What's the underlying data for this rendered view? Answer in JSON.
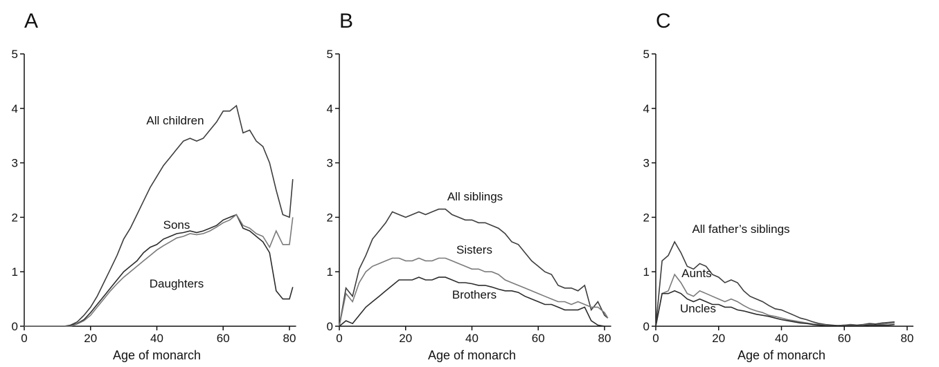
{
  "chart_data": [
    {
      "type": "line",
      "title": "A",
      "xlabel": "Age of monarch",
      "xlim": [
        0,
        82
      ],
      "ylim": [
        0,
        5
      ],
      "xticks": [
        0,
        20,
        40,
        60,
        80
      ],
      "yticks": [
        0,
        1,
        2,
        3,
        4,
        5
      ],
      "x": [
        0,
        2,
        4,
        6,
        8,
        10,
        12,
        14,
        16,
        18,
        20,
        22,
        24,
        26,
        28,
        30,
        32,
        34,
        36,
        38,
        40,
        42,
        44,
        46,
        48,
        50,
        52,
        54,
        56,
        58,
        60,
        62,
        64,
        66,
        68,
        70,
        72,
        74,
        76,
        78,
        80,
        81
      ],
      "series": [
        {
          "name": "All children",
          "color": "#3d3d3d",
          "values": [
            0,
            0,
            0,
            0,
            0,
            0,
            0,
            0.02,
            0.08,
            0.2,
            0.35,
            0.55,
            0.8,
            1.05,
            1.3,
            1.6,
            1.8,
            2.05,
            2.3,
            2.55,
            2.75,
            2.95,
            3.1,
            3.25,
            3.4,
            3.45,
            3.4,
            3.45,
            3.6,
            3.75,
            3.95,
            3.95,
            4.05,
            3.55,
            3.6,
            3.4,
            3.3,
            3.0,
            2.5,
            2.05,
            2.0,
            2.7
          ]
        },
        {
          "name": "Sons",
          "color": "#2b2b2b",
          "values": [
            0,
            0,
            0,
            0,
            0,
            0,
            0,
            0.01,
            0.05,
            0.12,
            0.25,
            0.4,
            0.55,
            0.7,
            0.85,
            1.0,
            1.1,
            1.2,
            1.35,
            1.45,
            1.5,
            1.6,
            1.65,
            1.7,
            1.72,
            1.75,
            1.72,
            1.75,
            1.8,
            1.85,
            1.95,
            2.0,
            2.05,
            1.8,
            1.75,
            1.65,
            1.55,
            1.35,
            0.65,
            0.5,
            0.5,
            0.72
          ]
        },
        {
          "name": "Daughters",
          "color": "#7a7a7a",
          "values": [
            0,
            0,
            0,
            0,
            0,
            0,
            0,
            0,
            0.04,
            0.1,
            0.2,
            0.35,
            0.5,
            0.65,
            0.78,
            0.9,
            1.0,
            1.1,
            1.2,
            1.3,
            1.4,
            1.48,
            1.55,
            1.62,
            1.65,
            1.7,
            1.68,
            1.7,
            1.75,
            1.82,
            1.9,
            1.95,
            2.05,
            1.85,
            1.8,
            1.7,
            1.65,
            1.45,
            1.75,
            1.5,
            1.5,
            2.0
          ]
        }
      ]
    },
    {
      "type": "line",
      "title": "B",
      "xlabel": "Age of monarch",
      "xlim": [
        0,
        82
      ],
      "ylim": [
        0,
        5
      ],
      "xticks": [
        0,
        20,
        40,
        60,
        80
      ],
      "yticks": [
        0,
        1,
        2,
        3,
        4,
        5
      ],
      "x": [
        0,
        2,
        4,
        6,
        8,
        10,
        12,
        14,
        16,
        18,
        20,
        22,
        24,
        26,
        28,
        30,
        32,
        34,
        36,
        38,
        40,
        42,
        44,
        46,
        48,
        50,
        52,
        54,
        56,
        58,
        60,
        62,
        64,
        66,
        68,
        70,
        72,
        74,
        76,
        78,
        80,
        81
      ],
      "series": [
        {
          "name": "All siblings",
          "color": "#3d3d3d",
          "values": [
            0,
            0.7,
            0.55,
            1.05,
            1.3,
            1.6,
            1.75,
            1.9,
            2.1,
            2.05,
            2.0,
            2.05,
            2.1,
            2.05,
            2.1,
            2.15,
            2.15,
            2.05,
            2.0,
            1.95,
            1.95,
            1.9,
            1.9,
            1.85,
            1.8,
            1.7,
            1.55,
            1.5,
            1.35,
            1.2,
            1.1,
            1.0,
            0.95,
            0.75,
            0.7,
            0.7,
            0.65,
            0.75,
            0.3,
            0.45,
            0.2,
            0.15
          ]
        },
        {
          "name": "Sisters",
          "color": "#7a7a7a",
          "values": [
            0,
            0.6,
            0.45,
            0.8,
            1.0,
            1.1,
            1.15,
            1.2,
            1.25,
            1.25,
            1.2,
            1.2,
            1.25,
            1.2,
            1.2,
            1.25,
            1.25,
            1.2,
            1.15,
            1.1,
            1.05,
            1.05,
            1.0,
            1.0,
            0.95,
            0.85,
            0.8,
            0.75,
            0.7,
            0.65,
            0.6,
            0.55,
            0.5,
            0.45,
            0.45,
            0.4,
            0.45,
            0.4,
            0.35,
            0.35,
            0.25,
            0.15
          ]
        },
        {
          "name": "Brothers",
          "color": "#2b2b2b",
          "values": [
            0,
            0.1,
            0.05,
            0.2,
            0.35,
            0.45,
            0.55,
            0.65,
            0.75,
            0.85,
            0.85,
            0.85,
            0.9,
            0.85,
            0.85,
            0.9,
            0.9,
            0.85,
            0.8,
            0.8,
            0.78,
            0.75,
            0.75,
            0.72,
            0.68,
            0.65,
            0.65,
            0.62,
            0.55,
            0.5,
            0.45,
            0.4,
            0.4,
            0.35,
            0.3,
            0.3,
            0.3,
            0.35,
            0.1,
            0.02,
            0,
            null
          ]
        }
      ]
    },
    {
      "type": "line",
      "title": "C",
      "xlabel": "Age of monarch",
      "xlim": [
        0,
        82
      ],
      "ylim": [
        0,
        5
      ],
      "xticks": [
        0,
        20,
        40,
        60,
        80
      ],
      "yticks": [
        0,
        1,
        2,
        3,
        4,
        5
      ],
      "x": [
        0,
        2,
        4,
        6,
        8,
        10,
        12,
        14,
        16,
        18,
        20,
        22,
        24,
        26,
        28,
        30,
        32,
        34,
        36,
        38,
        40,
        42,
        44,
        46,
        48,
        50,
        52,
        54,
        56,
        58,
        60,
        62,
        64,
        66,
        68,
        70,
        72,
        74,
        76
      ],
      "series": [
        {
          "name": "All father’s siblings",
          "color": "#3d3d3d",
          "values": [
            0,
            1.2,
            1.3,
            1.55,
            1.35,
            1.1,
            1.05,
            1.15,
            1.1,
            0.95,
            0.9,
            0.8,
            0.85,
            0.8,
            0.65,
            0.55,
            0.5,
            0.45,
            0.38,
            0.32,
            0.3,
            0.25,
            0.2,
            0.15,
            0.12,
            0.08,
            0.05,
            0.03,
            0.02,
            0.01,
            0.02,
            0.03,
            0.02,
            0.03,
            0.05,
            0.04,
            0.06,
            0.07,
            0.08
          ]
        },
        {
          "name": "Aunts",
          "color": "#7a7a7a",
          "values": [
            0,
            0.6,
            0.65,
            0.95,
            0.8,
            0.6,
            0.55,
            0.65,
            0.6,
            0.55,
            0.5,
            0.45,
            0.5,
            0.45,
            0.38,
            0.32,
            0.28,
            0.25,
            0.2,
            0.18,
            0.15,
            0.12,
            0.1,
            0.08,
            0.06,
            0.04,
            0.03,
            0.02,
            0.01,
            0.01,
            0.02,
            0.02,
            0.01,
            0.02,
            0.03,
            0.02,
            0.04,
            0.05,
            0.06
          ]
        },
        {
          "name": "Uncles",
          "color": "#2b2b2b",
          "values": [
            0,
            0.6,
            0.6,
            0.65,
            0.6,
            0.5,
            0.45,
            0.5,
            0.45,
            0.4,
            0.4,
            0.35,
            0.35,
            0.3,
            0.28,
            0.25,
            0.22,
            0.2,
            0.18,
            0.15,
            0.12,
            0.1,
            0.08,
            0.06,
            0.05,
            0.03,
            0.02,
            0.01,
            0.01,
            0.01,
            0.01,
            0.01,
            0.01,
            0.01,
            0.02,
            0.02,
            0.02,
            0.02,
            0.03
          ]
        }
      ]
    }
  ]
}
